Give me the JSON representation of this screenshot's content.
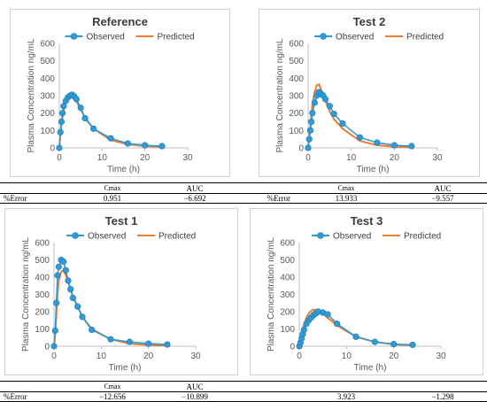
{
  "colors": {
    "observed": "#2E9BD6",
    "observed_edge": "#1F78B4",
    "predicted": "#ED7D31",
    "axis": "#bfbfbf"
  },
  "legend": {
    "observed": "Observed",
    "predicted": "Predicted"
  },
  "tables": [
    {
      "col1": "Cmax",
      "col2": "AUC",
      "col3": "Cmax",
      "col4": "AUC",
      "row_label": "%Error",
      "v1": "0.951",
      "v2": "−6.692",
      "row_label2": "%Error",
      "v3": "13.933",
      "v4": "−9.557"
    },
    {
      "col1": "Cmax",
      "col2": "AUC",
      "col3": "",
      "col4": "",
      "row_label": "%Error",
      "v1": "−12.656",
      "v2": "−10.899",
      "row_label2": "",
      "v3": "3.923",
      "v4": "−1.298"
    }
  ],
  "chart_data": [
    {
      "type": "line",
      "title": "Reference",
      "ylabel": "Plasma Concentration ng/mL",
      "xlabel": "Time (h)",
      "xlim": [
        0,
        30
      ],
      "ylim": [
        0,
        600
      ],
      "xticks": [
        0,
        10,
        20,
        30
      ],
      "yticks": [
        0,
        100,
        200,
        300,
        400,
        500,
        600
      ],
      "legend_position": "top",
      "series": [
        {
          "name": "Observed",
          "x": [
            0,
            0.25,
            0.5,
            0.75,
            1,
            1.5,
            2,
            2.5,
            3,
            3.5,
            4,
            5,
            6,
            8,
            12,
            16,
            20,
            24
          ],
          "y": [
            0,
            90,
            150,
            200,
            240,
            270,
            290,
            300,
            305,
            295,
            280,
            230,
            170,
            110,
            55,
            25,
            15,
            10
          ]
        },
        {
          "name": "Predicted",
          "x": [
            0,
            0.25,
            0.5,
            0.75,
            1,
            1.5,
            2,
            2.5,
            3,
            3.5,
            4,
            5,
            6,
            8,
            12,
            16,
            20,
            24
          ],
          "y": [
            0,
            70,
            130,
            175,
            215,
            265,
            300,
            312,
            308,
            290,
            268,
            220,
            175,
            110,
            45,
            20,
            10,
            5
          ]
        }
      ]
    },
    {
      "type": "line",
      "title": "Test 2",
      "ylabel": "Plasma Concentration ng/mL",
      "xlabel": "Time (h)",
      "xlim": [
        0,
        30
      ],
      "ylim": [
        0,
        600
      ],
      "xticks": [
        0,
        10,
        20,
        30
      ],
      "yticks": [
        0,
        100,
        200,
        300,
        400,
        500,
        600
      ],
      "legend_position": "top",
      "series": [
        {
          "name": "Observed",
          "x": [
            0,
            0.25,
            0.5,
            0.75,
            1,
            1.5,
            2,
            2.5,
            3,
            3.5,
            4,
            5,
            6,
            8,
            12,
            16,
            20,
            24
          ],
          "y": [
            0,
            50,
            100,
            150,
            200,
            260,
            300,
            320,
            310,
            300,
            280,
            240,
            195,
            140,
            60,
            30,
            15,
            10
          ]
        },
        {
          "name": "Predicted",
          "x": [
            0,
            0.25,
            0.5,
            0.75,
            1,
            1.5,
            2,
            2.5,
            3,
            3.5,
            4,
            5,
            6,
            8,
            12,
            16,
            20,
            24
          ],
          "y": [
            0,
            60,
            125,
            190,
            250,
            320,
            360,
            365,
            335,
            300,
            270,
            210,
            165,
            110,
            40,
            15,
            7,
            3
          ]
        }
      ]
    },
    {
      "type": "line",
      "title": "Test 1",
      "ylabel": "Plasma Concentration ng/mL",
      "xlabel": "Time (h)",
      "xlim": [
        0,
        30
      ],
      "ylim": [
        0,
        600
      ],
      "xticks": [
        0,
        10,
        20,
        30
      ],
      "yticks": [
        0,
        100,
        200,
        300,
        400,
        500,
        600
      ],
      "legend_position": "top",
      "series": [
        {
          "name": "Observed",
          "x": [
            0,
            0.25,
            0.5,
            0.75,
            1,
            1.5,
            2,
            2.5,
            3,
            3.5,
            4,
            5,
            6,
            8,
            12,
            16,
            20,
            24
          ],
          "y": [
            0,
            90,
            250,
            410,
            460,
            500,
            490,
            440,
            380,
            330,
            280,
            230,
            170,
            95,
            40,
            25,
            15,
            10
          ]
        },
        {
          "name": "Predicted",
          "x": [
            0,
            0.25,
            0.5,
            0.75,
            1,
            1.5,
            2,
            2.5,
            3,
            3.5,
            4,
            5,
            6,
            8,
            12,
            16,
            20,
            24
          ],
          "y": [
            0,
            70,
            180,
            300,
            380,
            430,
            440,
            410,
            370,
            330,
            290,
            230,
            170,
            100,
            40,
            15,
            7,
            3
          ]
        }
      ]
    },
    {
      "type": "line",
      "title": "Test 3",
      "ylabel": "Plasma Concentration ng/mL",
      "xlabel": "Time (h)",
      "xlim": [
        0,
        30
      ],
      "ylim": [
        0,
        600
      ],
      "xticks": [
        0,
        10,
        20,
        30
      ],
      "yticks": [
        0,
        100,
        200,
        300,
        400,
        500,
        600
      ],
      "legend_position": "top",
      "series": [
        {
          "name": "Observed",
          "x": [
            0,
            0.25,
            0.5,
            0.75,
            1,
            1.5,
            2,
            2.5,
            3,
            3.5,
            4,
            5,
            6,
            8,
            12,
            16,
            20,
            24
          ],
          "y": [
            0,
            20,
            45,
            70,
            95,
            130,
            150,
            165,
            180,
            190,
            200,
            195,
            185,
            130,
            55,
            25,
            12,
            8
          ]
        },
        {
          "name": "Predicted",
          "x": [
            0,
            0.25,
            0.5,
            0.75,
            1,
            1.5,
            2,
            2.5,
            3,
            3.5,
            4,
            5,
            6,
            8,
            12,
            16,
            20,
            24
          ],
          "y": [
            0,
            30,
            60,
            95,
            125,
            165,
            190,
            205,
            212,
            210,
            205,
            190,
            165,
            120,
            55,
            25,
            10,
            5
          ]
        }
      ]
    }
  ]
}
